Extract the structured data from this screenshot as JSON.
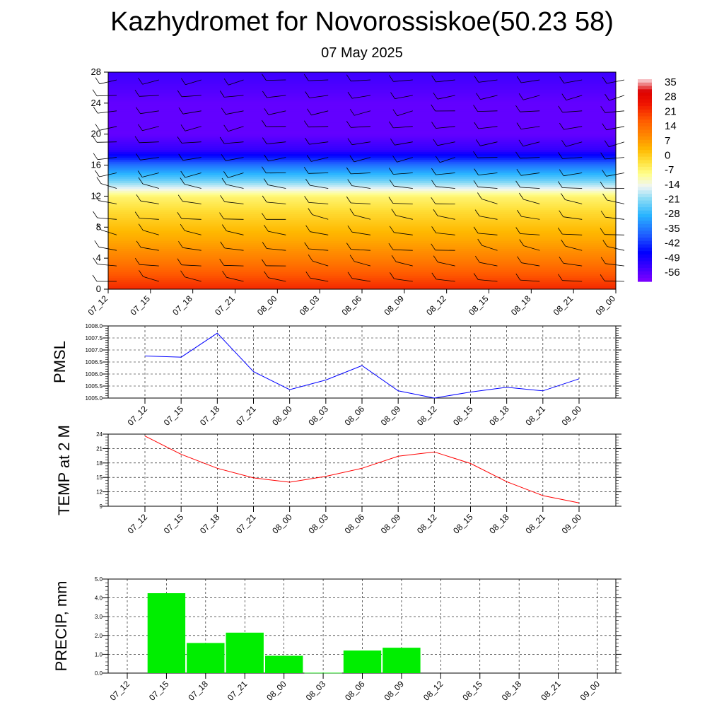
{
  "title": "Kazhydromet for Novorossiskoe(50.23 58)",
  "subtitle": "07 May 2025",
  "colors": {
    "pmsl_line": "#0000ff",
    "temp_line": "#ff0000",
    "precip_bar": "#00ee00",
    "grid": "#000000"
  },
  "chart_data": [
    {
      "type": "heatmap",
      "name": "vertical-section",
      "times": [
        "07_12",
        "07_15",
        "07_18",
        "07_21",
        "08_00",
        "08_03",
        "08_06",
        "08_09",
        "08_12",
        "08_15",
        "08_18",
        "08_21",
        "09_00"
      ],
      "y_ticks": [
        "0",
        "4",
        "8",
        "12",
        "16",
        "20",
        "24",
        "28"
      ],
      "ylim": [
        0,
        28
      ],
      "colorbar": {
        "labels": [
          "35",
          "28",
          "21",
          "14",
          "7",
          "0",
          "-7",
          "-14",
          "-21",
          "-28",
          "-35",
          "-42",
          "-49",
          "-56"
        ],
        "range": [
          -60,
          38
        ]
      },
      "field_by_level": [
        {
          "level": 0,
          "value": 24
        },
        {
          "level": 2,
          "value": 18
        },
        {
          "level": 4,
          "value": 12
        },
        {
          "level": 6,
          "value": 7
        },
        {
          "level": 8,
          "value": 3
        },
        {
          "level": 10,
          "value": -1
        },
        {
          "level": 12,
          "value": -6
        },
        {
          "level": 13,
          "value": -14
        },
        {
          "level": 14,
          "value": -22
        },
        {
          "level": 16,
          "value": -35
        },
        {
          "level": 18,
          "value": -52
        },
        {
          "level": 20,
          "value": -57
        },
        {
          "level": 24,
          "value": -57
        },
        {
          "level": 28,
          "value": -53
        }
      ],
      "wind_barbs": true
    },
    {
      "type": "line",
      "name": "pmsl",
      "ylabel": "PMSL",
      "x": [
        "07_12",
        "07_15",
        "07_18",
        "07_21",
        "08_00",
        "08_03",
        "08_06",
        "08_09",
        "08_12",
        "08_15",
        "08_18",
        "08_21",
        "09_00"
      ],
      "values": [
        1006.75,
        1006.7,
        1007.7,
        1006.1,
        1005.35,
        1005.75,
        1006.35,
        1005.3,
        1005.0,
        1005.25,
        1005.45,
        1005.3,
        1005.8
      ],
      "y_ticks": [
        "1005.0",
        "1005.5",
        "1006.0",
        "1006.5",
        "1007.0",
        "1007.5",
        "1008.0"
      ],
      "ylim": [
        1005.0,
        1008.0
      ],
      "grid": true
    },
    {
      "type": "line",
      "name": "temp",
      "ylabel": "TEMP at 2 M",
      "x": [
        "07_12",
        "07_15",
        "07_18",
        "07_21",
        "08_00",
        "08_03",
        "08_06",
        "08_09",
        "08_12",
        "08_15",
        "08_18",
        "08_21",
        "09_00"
      ],
      "values": [
        23.6,
        19.8,
        16.9,
        14.9,
        14.0,
        15.2,
        16.9,
        19.4,
        20.3,
        17.9,
        14.1,
        11.2,
        9.7
      ],
      "y_ticks": [
        "9",
        "12",
        "15",
        "18",
        "21",
        "24"
      ],
      "ylim": [
        9,
        24
      ],
      "grid": true
    },
    {
      "type": "bar",
      "name": "precip",
      "ylabel": "PRECIP, mm",
      "categories": [
        "07_12",
        "07_15",
        "07_18",
        "07_21",
        "08_00",
        "08_03",
        "08_06",
        "08_09",
        "08_12",
        "08_15",
        "08_18",
        "08_21",
        "09_00"
      ],
      "values": [
        0,
        4.25,
        1.6,
        2.15,
        0.92,
        0.02,
        1.2,
        1.35,
        0,
        0,
        0,
        0,
        0
      ],
      "y_ticks": [
        "0.0",
        "1.0",
        "2.0",
        "3.0",
        "4.0",
        "5.0"
      ],
      "ylim": [
        0,
        5
      ],
      "grid": true
    }
  ]
}
